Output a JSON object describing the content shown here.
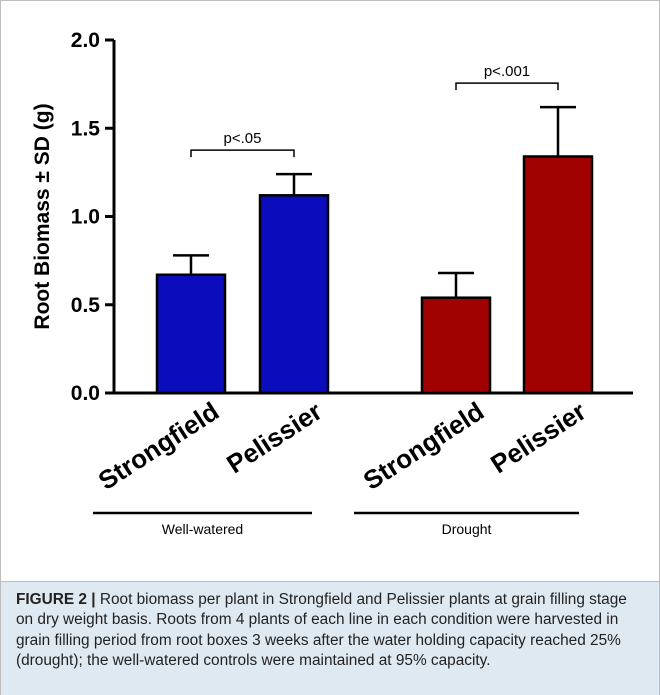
{
  "chart_data": {
    "type": "bar",
    "ylabel": "Root Biomass ± SD (g)",
    "ylim": [
      0.0,
      2.0
    ],
    "yticks": [
      "0.0",
      "0.5",
      "1.0",
      "1.5",
      "2.0"
    ],
    "groups": [
      {
        "label": "Well-watered",
        "color": "#0b0dbd",
        "significance": "p<.05",
        "bars": [
          {
            "category": "Strongfield",
            "value": 0.67,
            "sd": 0.11
          },
          {
            "category": "Pelissier",
            "value": 1.12,
            "sd": 0.12
          }
        ]
      },
      {
        "label": "Drought",
        "color": "#a00202",
        "significance": "p<.001",
        "bars": [
          {
            "category": "Strongfield",
            "value": 0.54,
            "sd": 0.14
          },
          {
            "category": "Pelissier",
            "value": 1.34,
            "sd": 0.28
          }
        ]
      }
    ]
  },
  "caption": {
    "label": "FIGURE 2 |",
    "text": " Root biomass per plant in Strongfield and Pelissier plants at grain filling stage on dry weight basis. Roots from 4 plants of each line in each condition were harvested in grain filling period from root boxes 3 weeks after the water holding capacity reached 25% (drought); the well-watered controls were maintained at 95% capacity."
  }
}
